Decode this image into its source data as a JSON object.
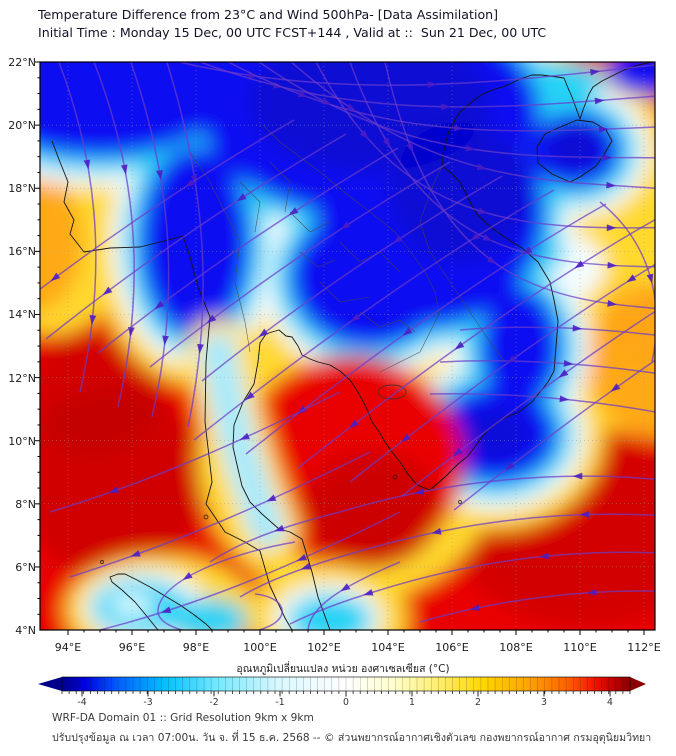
{
  "header": {
    "line1": "Temperature Difference from 23°C and Wind 500hPa- [Data Assimilation]",
    "line2": "Initial Time : Monday 15 Dec, 00 UTC FCST+144 , Valid at ::  Sun 21 Dec, 00 UTC"
  },
  "map": {
    "x_axis": [
      "94°E",
      "96°E",
      "98°E",
      "100°E",
      "102°E",
      "104°E",
      "106°E",
      "108°E",
      "110°E",
      "112°E"
    ],
    "y_axis": [
      "22°N",
      "20°N",
      "18°N",
      "16°N",
      "14°N",
      "12°N",
      "10°N",
      "8°N",
      "6°N",
      "4°N"
    ]
  },
  "colorbar": {
    "label": "อุณหภูมิเปลี่ยนแปลง หน่วย องศาเซลเซียส (°C)",
    "ticks": [
      "-4",
      "-3",
      "-2",
      "-1",
      "0",
      "1",
      "2",
      "3",
      "4"
    ],
    "range": [
      -4,
      4
    ],
    "gradient": [
      "#00008b",
      "#0000e0",
      "#0060ff",
      "#00c0ff",
      "#70e8ff",
      "#d8f8ff",
      "#ffffff",
      "#ffffd0",
      "#ffef70",
      "#ffd700",
      "#ffa500",
      "#ff6000",
      "#f01000",
      "#c00000",
      "#8b0000"
    ]
  },
  "footer": {
    "line1": "WRF-DA Domain 01 :: Grid Resolution 9km x 9km",
    "line2": "ปรับปรุงข้อมูล ณ เวลา 07:00น. วัน จ. ที่ 15 ธ.ค. 2568 -- © ส่วนพยากรณ์อากาศเชิงตัวเลข กองพยากรณ์อากาศ กรมอุตุนิยมวิทยา"
  },
  "colors": {
    "cold_core": "#1010f2",
    "cool_band": "#27d3f5",
    "neutral_band": "#f4fdff",
    "warm_band": "#ffd92e",
    "hot_core": "#e90505",
    "streamline": "#6b3cc9",
    "arrow": "#4a1dc4"
  }
}
